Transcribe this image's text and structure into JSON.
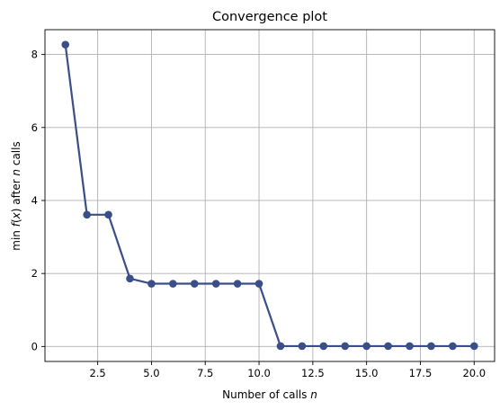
{
  "chart_data": {
    "type": "line",
    "title": "Convergence plot",
    "xlabel": "Number of calls n",
    "ylabel": "min f(x) after n calls",
    "xlim": [
      0.05,
      20.95
    ],
    "ylim": [
      -0.41,
      8.68
    ],
    "xticks": [
      2.5,
      5.0,
      7.5,
      10.0,
      12.5,
      15.0,
      17.5,
      20.0
    ],
    "xtick_labels": [
      "2.5",
      "5.0",
      "7.5",
      "10.0",
      "12.5",
      "15.0",
      "17.5",
      "20.0"
    ],
    "yticks": [
      0,
      2,
      4,
      6,
      8
    ],
    "ytick_labels": [
      "0",
      "2",
      "4",
      "6",
      "8"
    ],
    "grid": true,
    "series": [
      {
        "color": "#3a4f8a",
        "x": [
          1,
          2,
          3,
          4,
          5,
          6,
          7,
          8,
          9,
          10,
          11,
          12,
          13,
          14,
          15,
          16,
          17,
          18,
          19,
          20
        ],
        "y": [
          8.27,
          3.61,
          3.61,
          1.86,
          1.72,
          1.72,
          1.72,
          1.72,
          1.72,
          1.72,
          0.01,
          0.01,
          0.01,
          0.01,
          0.01,
          0.01,
          0.01,
          0.01,
          0.01,
          0.01
        ]
      }
    ]
  }
}
